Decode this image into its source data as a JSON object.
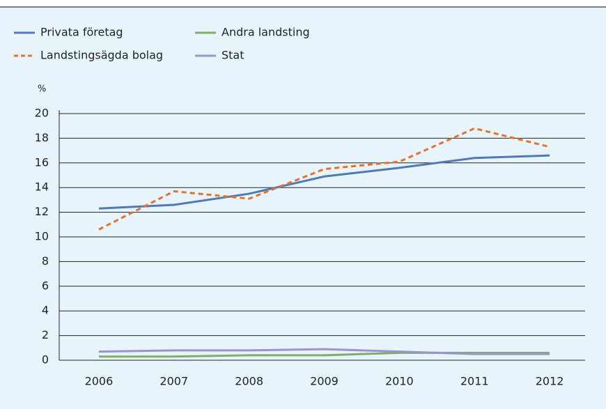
{
  "chart_data": {
    "type": "line",
    "y_label": "%",
    "categories": [
      "2006",
      "2007",
      "2008",
      "2009",
      "2010",
      "2011",
      "2012"
    ],
    "series": [
      {
        "name": "Privata företag",
        "color": "#4f7ab5",
        "values": [
          12.3,
          12.6,
          13.5,
          14.9,
          15.6,
          16.4,
          16.6
        ]
      },
      {
        "name": "Landstingsägda bolag",
        "color": "#e8702a",
        "dashed": true,
        "values": [
          10.6,
          13.7,
          13.1,
          15.5,
          16.1,
          18.8,
          17.3
        ]
      },
      {
        "name": "Andra landsting",
        "color": "#7fae6b",
        "values": [
          0.3,
          0.3,
          0.4,
          0.4,
          0.6,
          0.6,
          0.6
        ]
      },
      {
        "name": "Stat",
        "color": "#9d93c8",
        "values": [
          0.7,
          0.8,
          0.8,
          0.9,
          0.7,
          0.5,
          0.5
        ]
      }
    ],
    "ylim": [
      0,
      20
    ],
    "yticks": [
      0,
      2,
      4,
      6,
      8,
      10,
      12,
      14,
      16,
      18,
      20
    ],
    "grid": true
  }
}
